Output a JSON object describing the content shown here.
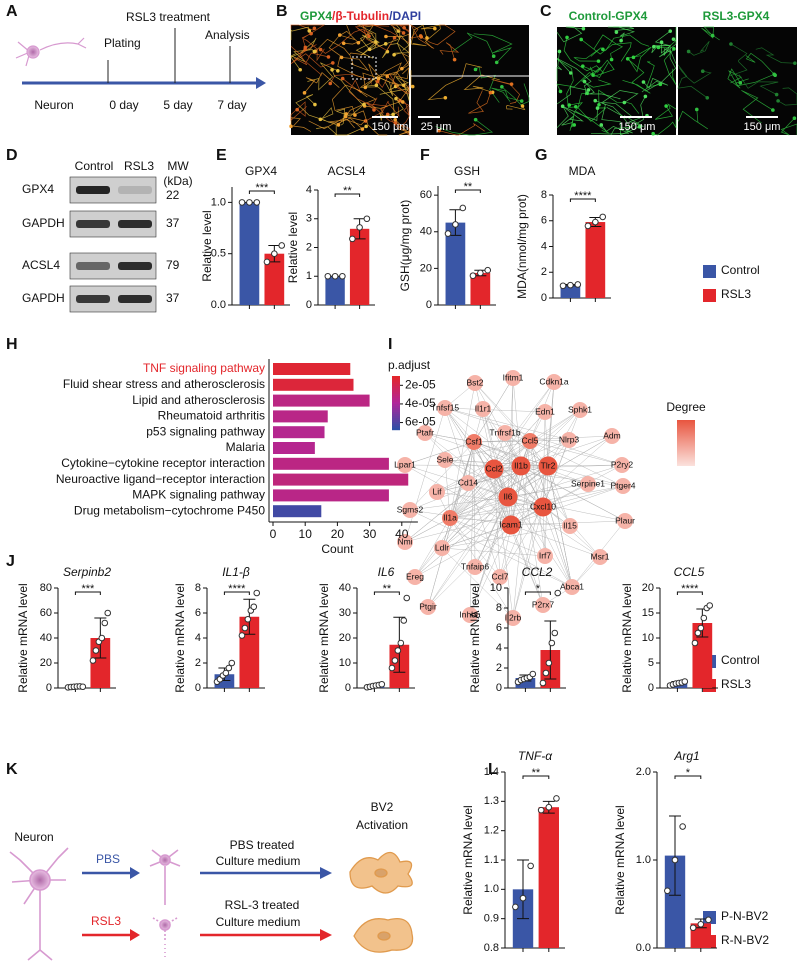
{
  "panel_labels": [
    "A",
    "B",
    "C",
    "D",
    "E",
    "F",
    "G",
    "H",
    "I",
    "J",
    "K",
    "L"
  ],
  "timeline": {
    "title": "RSL3 treatment",
    "start": "Neuron",
    "events": [
      "Plating",
      "Analysis"
    ],
    "days": [
      "0 day",
      "5 day",
      "7 day"
    ]
  },
  "micrographs": {
    "b_title": [
      "GPX4",
      "/β-Tubulin",
      "/DAPI"
    ],
    "b_scales": [
      "150 μm",
      "25 μm"
    ],
    "c_titles": [
      "Control-GPX4",
      "RSL3-GPX4"
    ],
    "c_scales": [
      "150 μm",
      "150 μm"
    ]
  },
  "blot": {
    "lanes": [
      "Control",
      "RSL3"
    ],
    "mw_title": "MW",
    "mw_unit": "(kDa)",
    "rows": [
      {
        "name": "GPX4",
        "mw": "22"
      },
      {
        "name": "GAPDH",
        "mw": "37"
      },
      {
        "name": "ACSL4",
        "mw": "79"
      },
      {
        "name": "GAPDH",
        "mw": "37"
      }
    ]
  },
  "legends": [
    {
      "items": [
        {
          "name": "Control",
          "color": "#3a56a6"
        },
        {
          "name": "RSL3",
          "color": "#e3262b"
        }
      ]
    },
    {
      "items": [
        {
          "name": "Control",
          "color": "#3a56a6"
        },
        {
          "name": "RSL3",
          "color": "#e3262b"
        }
      ]
    },
    {
      "items": [
        {
          "name": "P-N-BV2",
          "color": "#3a56a6"
        },
        {
          "name": "R-N-BV2",
          "color": "#e3262b"
        }
      ]
    }
  ],
  "network": {
    "legend": "Degree",
    "nodes": [
      "Bst2",
      "Ifitm1",
      "Cdkn1a",
      "Tnfsf15",
      "Sphk1",
      "Il1r1",
      "Edn1",
      "Ptafr",
      "Tnfrsf1b",
      "Adm",
      "Csf1",
      "Ccl5",
      "Nlrp3",
      "Lpar1",
      "Sele",
      "Ccl2",
      "Il1b",
      "Tlr2",
      "P2ry2",
      "Cd14",
      "Lif",
      "Serpine1",
      "Ptger4",
      "Sgms2",
      "Il6",
      "Cxcl10",
      "Il1a",
      "Icam1",
      "Il15",
      "Plaur",
      "Nmi",
      "Ldlr",
      "Ereg",
      "Tnfaip6",
      "Irf7",
      "Msr1",
      "Ccl7",
      "Ptgir",
      "Abca1",
      "Inhba",
      "Il2rb",
      "P2rx7"
    ]
  },
  "diagram": {
    "neuron": "Neuron",
    "arrows": [
      "PBS",
      "RSL3"
    ],
    "media": [
      [
        "PBS treated",
        "Culture medium"
      ],
      [
        "RSL-3 treated",
        "Culture medium"
      ]
    ],
    "target": [
      "BV2",
      "Activation"
    ]
  },
  "chart_data": [
    {
      "type": "bar",
      "title": "GPX4",
      "ylabel": "Relative level",
      "legend": 0,
      "values": [
        1.0,
        0.5
      ],
      "errors": [
        0,
        0.08
      ],
      "points": [
        [
          1,
          1,
          1
        ],
        [
          0.42,
          0.5,
          0.58
        ]
      ],
      "significance": "***",
      "ylim": [
        0,
        1.15
      ],
      "yticks": [
        {
          "value": 0,
          "label": "0.0"
        },
        0.5,
        {
          "value": 1,
          "label": "1.0"
        }
      ]
    },
    {
      "type": "bar",
      "title": "ACSL4",
      "ylabel": "Relative level",
      "legend": 0,
      "values": [
        1.0,
        2.65
      ],
      "errors": [
        0,
        0.35
      ],
      "points": [
        [
          1,
          1,
          1
        ],
        [
          2.3,
          2.7,
          3.0
        ]
      ],
      "significance": "**",
      "ylim": [
        0,
        4
      ],
      "yticks": [
        0,
        1,
        2,
        3,
        4
      ]
    },
    {
      "type": "bar",
      "title": "GSH",
      "ylabel": "GSH(μg/mg prot)",
      "legend": 0,
      "values": [
        45,
        17.5
      ],
      "errors": [
        7,
        1.5
      ],
      "points": [
        [
          39,
          44,
          53
        ],
        [
          16,
          17.5,
          19
        ]
      ],
      "significance": "**",
      "ylim": [
        0,
        65
      ],
      "yticks": [
        0,
        20,
        40,
        60
      ]
    },
    {
      "type": "bar",
      "title": "MDA",
      "ylabel": "MDA(nmol/mg prot)",
      "legend": 0,
      "values": [
        1.0,
        5.9
      ],
      "errors": [
        0.05,
        0.35
      ],
      "points": [
        [
          0.95,
          1,
          1.05
        ],
        [
          5.6,
          5.9,
          6.3
        ]
      ],
      "significance": "****",
      "ylim": [
        0,
        8
      ],
      "yticks": [
        0,
        2,
        4,
        6,
        8
      ]
    },
    {
      "type": "barh",
      "xlabel": "Count",
      "categories": [
        "TNF signaling pathway",
        "Fluid shear stress and atherosclerosis",
        "Lipid and atherosclerosis",
        "Rheumatoid arthritis",
        "p53 signaling pathway",
        "Malaria",
        "Cytokine−cytokine receptor interaction",
        "Neuroactive ligand−receptor interaction",
        "MAPK signaling pathway",
        "Drug metabolism−cytochrome P450"
      ],
      "highlight_color": "#e3262b",
      "highlight": [
        0
      ],
      "values": [
        24,
        25,
        30,
        17,
        16,
        13,
        36,
        42,
        36,
        15
      ],
      "p_adjust": [
        1.2e-05,
        1.4e-05,
        3.3e-05,
        3.4e-05,
        3.6e-05,
        3.6e-05,
        3.3e-05,
        3.1e-05,
        3.4e-05,
        6.4e-05
      ],
      "xlim": [
        0,
        45
      ],
      "xticks": [
        0,
        10,
        20,
        30,
        40
      ],
      "colorbar": {
        "title": "p.adjust",
        "lim": [
          1e-05,
          6.8e-05
        ],
        "colors": [
          "#e3262b",
          "#b0269a",
          "#2f4fa6"
        ],
        "ticks": [
          {
            "value": 2e-05,
            "label": "2e-05"
          },
          {
            "value": 4e-05,
            "label": "4e-05"
          },
          {
            "value": 6e-05,
            "label": "6e-05"
          }
        ]
      }
    },
    {
      "type": "bar",
      "title": "Serpinb2",
      "italic_title": true,
      "ylabel": "Relative mRNA level",
      "legend": 1,
      "values": [
        1,
        40
      ],
      "errors": [
        0.4,
        16
      ],
      "points": [
        [
          0.5,
          0.8,
          1,
          1.2,
          1.3,
          1.0
        ],
        [
          22,
          30,
          37,
          40,
          52,
          60
        ]
      ],
      "significance": "***",
      "ylim": [
        0,
        80
      ],
      "yticks": [
        0,
        20,
        40,
        60,
        80
      ]
    },
    {
      "type": "bar",
      "title": "IL1-β",
      "italic_title": true,
      "ylabel": "Relative mRNA level",
      "legend": 1,
      "values": [
        1.1,
        5.7
      ],
      "errors": [
        0.5,
        1.4
      ],
      "points": [
        [
          0.5,
          0.7,
          1,
          1.2,
          1.6,
          2.0
        ],
        [
          4.2,
          4.8,
          5.5,
          6.2,
          6.5,
          7.6
        ]
      ],
      "significance": "****",
      "ylim": [
        0,
        8
      ],
      "yticks": [
        0,
        2,
        4,
        6,
        8
      ]
    },
    {
      "type": "bar",
      "title": "IL6",
      "italic_title": true,
      "ylabel": "Relative mRNA level",
      "legend": 1,
      "values": [
        1,
        17.3
      ],
      "errors": [
        0.4,
        11
      ],
      "points": [
        [
          0.3,
          0.5,
          0.8,
          1.0,
          1.2,
          1.5
        ],
        [
          8,
          11,
          15,
          18,
          27,
          36
        ]
      ],
      "significance": "**",
      "ylim": [
        0,
        40
      ],
      "yticks": [
        0,
        10,
        20,
        30,
        40
      ]
    },
    {
      "type": "bar",
      "title": "CCL2",
      "italic_title": true,
      "ylabel": "Relative mRNA level",
      "legend": 1,
      "values": [
        1,
        3.8
      ],
      "errors": [
        0.3,
        2.9
      ],
      "points": [
        [
          0.6,
          0.8,
          0.9,
          1.0,
          1.1,
          1.4
        ],
        [
          0.5,
          1.5,
          2.5,
          4.5,
          5.5,
          9.5
        ]
      ],
      "significance": "*",
      "ylim": [
        0,
        10
      ],
      "yticks": [
        0,
        2,
        4,
        6,
        8,
        10
      ]
    },
    {
      "type": "bar",
      "title": "CCL5",
      "italic_title": true,
      "ylabel": "Relative mRNA level",
      "legend": 1,
      "values": [
        1,
        13
      ],
      "errors": [
        0.3,
        2.8
      ],
      "points": [
        [
          0.5,
          0.7,
          0.9,
          1.0,
          1.1,
          1.3
        ],
        [
          9,
          11,
          12,
          14,
          16,
          16.5
        ]
      ],
      "significance": "****",
      "ylim": [
        0,
        20
      ],
      "yticks": [
        0,
        5,
        10,
        15,
        20
      ]
    },
    {
      "type": "bar",
      "title": "TNF-α",
      "italic_title": true,
      "ylabel": "Relative mRNA level",
      "legend": 2,
      "values": [
        1.0,
        1.28
      ],
      "errors": [
        0.1,
        0.02
      ],
      "points": [
        [
          0.94,
          0.97,
          1.08
        ],
        [
          1.27,
          1.28,
          1.31
        ]
      ],
      "significance": "**",
      "ylim": [
        0.8,
        1.4
      ],
      "yticks": [
        0.8,
        0.9,
        {
          "value": 1,
          "label": "1.0"
        },
        1.1,
        1.2,
        1.3,
        1.4
      ]
    },
    {
      "type": "bar",
      "title": "Arg1",
      "italic_title": true,
      "ylabel": "Relative mRNA level",
      "legend": 2,
      "values": [
        1.05,
        0.28
      ],
      "errors": [
        0.45,
        0.05
      ],
      "points": [
        [
          0.65,
          1.0,
          1.38
        ],
        [
          0.23,
          0.27,
          0.32
        ]
      ],
      "significance": "*",
      "ylim": [
        0,
        2
      ],
      "yticks": [
        {
          "value": 0,
          "label": "0.0"
        },
        {
          "value": 1,
          "label": "1.0"
        },
        {
          "value": 2,
          "label": "2.0"
        }
      ]
    }
  ]
}
